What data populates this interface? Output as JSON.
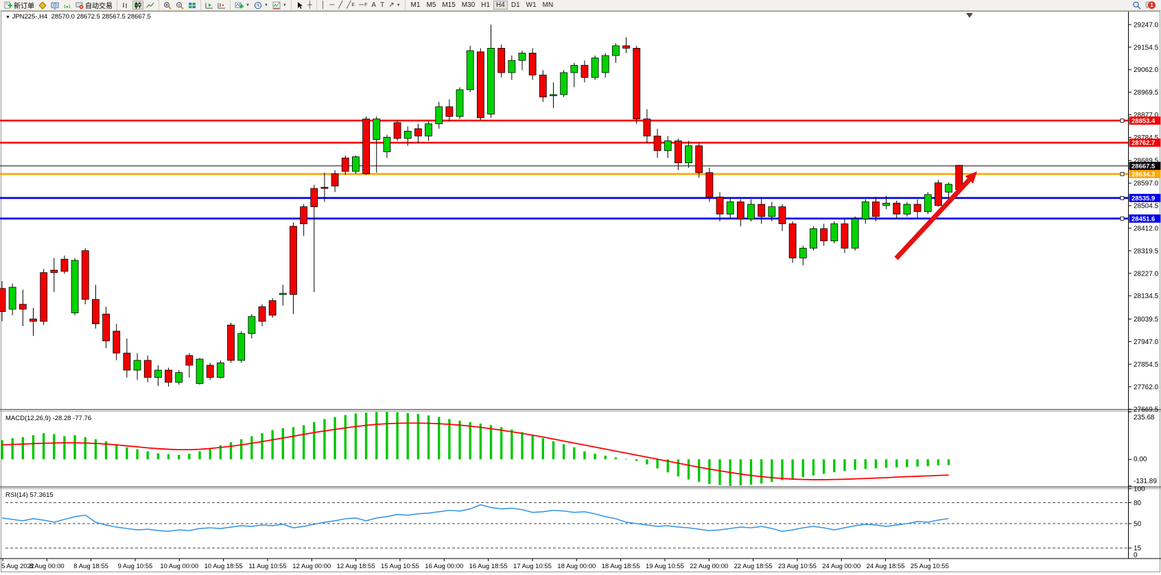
{
  "toolbar": {
    "new_order_label": "新订单",
    "autotrade_label": "自动交易",
    "timeframes": [
      "M1",
      "M5",
      "M15",
      "M30",
      "H1",
      "H4",
      "D1",
      "W1",
      "MN"
    ],
    "active_timeframe": "H4",
    "notification_count": "1"
  },
  "icons": {
    "collapse": "▼",
    "dropdown": "▼",
    "vline": "│",
    "hline": "─",
    "trendline": "╱",
    "crosshair": "┼",
    "text_tool": "A",
    "label_tool": "T",
    "channel_letter": "E",
    "fibo_letter": "F",
    "shapes_tool": "↗"
  },
  "chart": {
    "symbol_label": "JPN225-,H4",
    "ohlc_text": "28570.0 28672.5 28567.5 28667.5"
  },
  "indicators": {
    "macd_label": "MACD(12,26,9) -28.28 -77.76",
    "rsi_label": "RSI(14) 57.3615"
  },
  "chart_data": {
    "type": "candlestick",
    "symbol": "JPN225-",
    "timeframe": "H4",
    "current_ohlc": {
      "open": 28570.0,
      "high": 28672.5,
      "low": 28567.5,
      "close": 28667.5
    },
    "price_ticks": [
      29247.0,
      29154.5,
      29062.0,
      28969.5,
      28877.0,
      28784.5,
      28689.5,
      28597.0,
      28504.5,
      28412.0,
      28319.5,
      28227.0,
      28134.5,
      28039.5,
      27947.0,
      27854.5,
      27762.0,
      27669.5
    ],
    "times": [
      "5 Aug 2022",
      "8 Aug 00:00",
      "8 Aug 18:55",
      "9 Aug 10:55",
      "10 Aug 00:00",
      "10 Aug 18:55",
      "11 Aug 10:55",
      "12 Aug 00:00",
      "12 Aug 18:55",
      "15 Aug 10:55",
      "16 Aug 00:00",
      "16 Aug 18:55",
      "17 Aug 10:55",
      "18 Aug 00:00",
      "18 Aug 18:55",
      "19 Aug 10:55",
      "22 Aug 00:00",
      "22 Aug 18:55",
      "23 Aug 10:55",
      "24 Aug 00:00",
      "24 Aug 18:55",
      "25 Aug 10:55"
    ],
    "horizontal_lines": [
      {
        "price": 28853.4,
        "label": "28853.4",
        "color": "#f20000",
        "width": 2.6,
        "handle": true
      },
      {
        "price": 28762.7,
        "label": "28762.7",
        "color": "#f20000",
        "width": 2.6,
        "handle": false
      },
      {
        "price": 28667.5,
        "label": "28667.5",
        "color": "#000000",
        "width": 1,
        "handle": false
      },
      {
        "price": 28634.3,
        "label": "28634.3",
        "color": "#ffa500",
        "width": 2.8,
        "handle": true
      },
      {
        "price": 28535.9,
        "label": "28535.9",
        "color": "#0000ee",
        "width": 2.8,
        "handle": true
      },
      {
        "price": 28451.6,
        "label": "28451.6",
        "color": "#0000ee",
        "width": 2.8,
        "handle": true
      }
    ],
    "candles": [
      [
        28165,
        28195,
        28030,
        28070
      ],
      [
        28080,
        28185,
        28055,
        28170
      ],
      [
        28100,
        28160,
        28010,
        28080
      ],
      [
        28040,
        28085,
        27970,
        28030
      ],
      [
        28230,
        28245,
        28015,
        28030
      ],
      [
        28240,
        28290,
        28150,
        28230
      ],
      [
        28285,
        28300,
        28225,
        28235
      ],
      [
        28065,
        28290,
        28055,
        28280
      ],
      [
        28320,
        28330,
        28100,
        28120
      ],
      [
        28120,
        28180,
        28000,
        28020
      ],
      [
        28060,
        28090,
        27920,
        27950
      ],
      [
        27990,
        28020,
        27870,
        27900
      ],
      [
        27900,
        27960,
        27800,
        27830
      ],
      [
        27830,
        27900,
        27790,
        27870
      ],
      [
        27870,
        27890,
        27780,
        27800
      ],
      [
        27800,
        27850,
        27765,
        27830
      ],
      [
        27830,
        27840,
        27762,
        27780
      ],
      [
        27780,
        27830,
        27770,
        27820
      ],
      [
        27890,
        27900,
        27800,
        27850
      ],
      [
        27775,
        27880,
        27770,
        27875
      ],
      [
        27850,
        27860,
        27790,
        27800
      ],
      [
        27800,
        27870,
        27795,
        27860
      ],
      [
        28015,
        28025,
        27860,
        27870
      ],
      [
        27870,
        27990,
        27860,
        27980
      ],
      [
        27980,
        28060,
        27960,
        28050
      ],
      [
        28090,
        28100,
        28010,
        28030
      ],
      [
        28115,
        28125,
        28045,
        28055
      ],
      [
        28140,
        28180,
        28095,
        28145
      ],
      [
        28420,
        28435,
        28060,
        28140
      ],
      [
        28500,
        28510,
        28380,
        28430
      ],
      [
        28575,
        28590,
        28150,
        28500
      ],
      [
        28580,
        28640,
        28520,
        28575
      ],
      [
        28635,
        28650,
        28560,
        28585
      ],
      [
        28700,
        28710,
        28630,
        28645
      ],
      [
        28645,
        28710,
        28635,
        28705
      ],
      [
        28860,
        28870,
        28630,
        28635
      ],
      [
        28775,
        28870,
        28640,
        28860
      ],
      [
        28725,
        28795,
        28700,
        28785
      ],
      [
        28845,
        28855,
        28770,
        28780
      ],
      [
        28780,
        28830,
        28750,
        28810
      ],
      [
        28820,
        28840,
        28760,
        28790
      ],
      [
        28790,
        28850,
        28770,
        28840
      ],
      [
        28840,
        28930,
        28820,
        28910
      ],
      [
        28910,
        28940,
        28850,
        28870
      ],
      [
        28870,
        28990,
        28860,
        28980
      ],
      [
        28980,
        29160,
        28970,
        29140
      ],
      [
        29135,
        29150,
        28855,
        28865
      ],
      [
        28880,
        29247,
        28865,
        29150
      ],
      [
        29150,
        29165,
        29030,
        29050
      ],
      [
        29050,
        29120,
        29020,
        29100
      ],
      [
        29100,
        29140,
        29060,
        29130
      ],
      [
        29130,
        29150,
        29020,
        29040
      ],
      [
        29040,
        29060,
        28930,
        28950
      ],
      [
        28955,
        29010,
        28905,
        28960
      ],
      [
        28960,
        29060,
        28950,
        29050
      ],
      [
        29050,
        29090,
        28990,
        29080
      ],
      [
        29080,
        29100,
        29010,
        29030
      ],
      [
        29030,
        29120,
        29020,
        29110
      ],
      [
        29050,
        29130,
        29030,
        29120
      ],
      [
        29120,
        29170,
        29090,
        29160
      ],
      [
        29160,
        29195,
        29130,
        29150
      ],
      [
        29150,
        29160,
        28840,
        28860
      ],
      [
        28860,
        28900,
        28760,
        28790
      ],
      [
        28790,
        28820,
        28700,
        28730
      ],
      [
        28730,
        28790,
        28700,
        28770
      ],
      [
        28770,
        28780,
        28650,
        28680
      ],
      [
        28680,
        28770,
        28660,
        28750
      ],
      [
        28750,
        28760,
        28620,
        28640
      ],
      [
        28640,
        28660,
        28520,
        28540
      ],
      [
        28540,
        28560,
        28440,
        28470
      ],
      [
        28470,
        28540,
        28450,
        28520
      ],
      [
        28520,
        28530,
        28420,
        28450
      ],
      [
        28450,
        28530,
        28440,
        28510
      ],
      [
        28510,
        28540,
        28430,
        28460
      ],
      [
        28460,
        28520,
        28440,
        28500
      ],
      [
        28500,
        28510,
        28400,
        28430
      ],
      [
        28430,
        28440,
        28270,
        28290
      ],
      [
        28290,
        28340,
        28260,
        28330
      ],
      [
        28330,
        28420,
        28320,
        28410
      ],
      [
        28410,
        28430,
        28340,
        28360
      ],
      [
        28360,
        28440,
        28350,
        28430
      ],
      [
        28430,
        28450,
        28310,
        28330
      ],
      [
        28330,
        28460,
        28320,
        28450
      ],
      [
        28450,
        28530,
        28430,
        28520
      ],
      [
        28520,
        28540,
        28440,
        28460
      ],
      [
        28505,
        28545,
        28490,
        28515
      ],
      [
        28515,
        28525,
        28450,
        28470
      ],
      [
        28470,
        28520,
        28460,
        28510
      ],
      [
        28510,
        28530,
        28450,
        28480
      ],
      [
        28480,
        28560,
        28470,
        28550
      ],
      [
        28598,
        28610,
        28500,
        28505
      ],
      [
        28560,
        28600,
        28530,
        28592
      ],
      [
        28670,
        28672,
        28567,
        28570
      ]
    ],
    "macd": {
      "label": "MACD(12,26,9) -28.28 -77.76",
      "macd_value": -28.28,
      "signal_value": -77.76,
      "axis": [
        235.68,
        0.0,
        -131.89
      ],
      "histogram": [
        95,
        105,
        110,
        120,
        130,
        125,
        115,
        120,
        110,
        100,
        90,
        75,
        60,
        50,
        40,
        30,
        25,
        22,
        28,
        40,
        55,
        70,
        85,
        100,
        115,
        130,
        145,
        155,
        160,
        170,
        185,
        200,
        210,
        220,
        228,
        232,
        235,
        235.68,
        234,
        230,
        225,
        218,
        210,
        200,
        192,
        185,
        178,
        170,
        160,
        148,
        135,
        120,
        105,
        90,
        75,
        60,
        40,
        28,
        18,
        10,
        2,
        -8,
        -25,
        -45,
        -65,
        -85,
        -100,
        -112,
        -122,
        -128,
        -131.89,
        -130,
        -126,
        -120,
        -112,
        -104,
        -96,
        -88,
        -80,
        -72,
        -64,
        -58,
        -52,
        -48,
        -45,
        -42,
        -40,
        -38,
        -36,
        -34,
        -30,
        -28.28
      ],
      "signal": [
        72,
        74,
        76,
        78,
        80,
        81,
        82,
        82,
        81,
        79,
        76,
        72,
        67,
        62,
        57,
        53,
        50,
        48,
        48,
        50,
        54,
        59,
        65,
        72,
        80,
        88,
        97,
        106,
        115,
        124,
        133,
        141,
        149,
        156,
        163,
        169,
        174,
        177,
        179,
        180,
        180,
        179,
        177,
        174,
        170,
        165,
        159,
        152,
        145,
        137,
        129,
        120,
        111,
        101,
        91,
        81,
        71,
        61,
        51,
        41,
        31,
        21,
        11,
        1,
        -9,
        -19,
        -29,
        -39,
        -48,
        -57,
        -65,
        -73,
        -80,
        -86,
        -91,
        -95,
        -98,
        -100,
        -101,
        -101,
        -100,
        -99,
        -97,
        -95,
        -93,
        -91,
        -88,
        -86,
        -84,
        -82,
        -80,
        -77.76
      ]
    },
    "rsi": {
      "label": "RSI(14) 57.3615",
      "value": 57.3615,
      "levels": [
        80,
        50,
        15
      ],
      "axis": [
        100,
        80,
        50,
        15,
        0
      ],
      "values": [
        58,
        56,
        54,
        57,
        55,
        52,
        56,
        60,
        62,
        52,
        48,
        45,
        43,
        41,
        42,
        40,
        39,
        41,
        40,
        43,
        44,
        43,
        45,
        47,
        46,
        48,
        47,
        49,
        44,
        46,
        49,
        52,
        54,
        57,
        58,
        54,
        58,
        60,
        63,
        62,
        64,
        65,
        67,
        69,
        68,
        71,
        77,
        73,
        71,
        72,
        70,
        66,
        67,
        69,
        68,
        66,
        67,
        64,
        60,
        57,
        52,
        50,
        48,
        46,
        47,
        45,
        44,
        42,
        40,
        41,
        43,
        45,
        44,
        46,
        43,
        39,
        41,
        44,
        46,
        44,
        41,
        44,
        47,
        49,
        48,
        46,
        48,
        50,
        53,
        52,
        55,
        57.36
      ]
    },
    "annotations": [
      {
        "type": "arrow",
        "color": "#e81010",
        "from_xy": [
          1306,
          377
        ],
        "to_xy": [
          1424,
          250
        ]
      }
    ],
    "colors": {
      "bull": "#00d300",
      "bear": "#f20000",
      "wick": "#000000",
      "macd_bar": "#00c800",
      "macd_signal": "#ff0000",
      "rsi_line": "#3b97e8"
    }
  }
}
